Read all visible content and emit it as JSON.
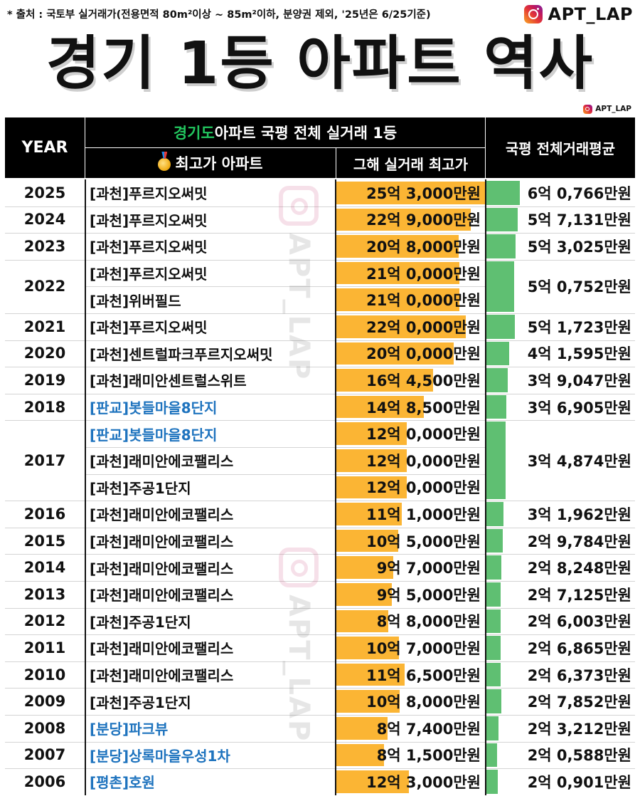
{
  "source_note": "* 출처 : 국토부 실거래가(전용면적 80m²이상 ~ 85m²이하, 분양권 제외, '25년은 6/25기준)",
  "brand": {
    "icon": "instagram-icon",
    "name": "APT_LAP",
    "small_name": "APT_LAP"
  },
  "title": "경기 1등 아파트 역사",
  "watermark_text": "APT_LAP",
  "header": {
    "year": "YEAR",
    "group_highlight": "경기도",
    "group_rest": " 아파트 국평 전체 실거래 1등",
    "apt_col": "최고가 아파트",
    "price_col": "그해 실거래 최고가",
    "avg_col": "국평 전체거래평균"
  },
  "colors": {
    "header_bg": "#000000",
    "highlight": "#22c55e",
    "price_bar": "#fbb534",
    "avg_bar": "#5fbf72",
    "region_blue": "#1e73be"
  },
  "rows": [
    {
      "year": "2025",
      "avg": "6억 0,766만원",
      "avg_value": 60766,
      "apts": [
        {
          "region": "[과천]",
          "name": "푸르지오써밋",
          "blue": false,
          "price": "25억 3,000만원",
          "price_value": 253000
        }
      ]
    },
    {
      "year": "2024",
      "avg": "5억 7,131만원",
      "avg_value": 57131,
      "apts": [
        {
          "region": "[과천]",
          "name": "푸르지오써밋",
          "blue": false,
          "price": "22억 9,000만원",
          "price_value": 229000
        }
      ]
    },
    {
      "year": "2023",
      "avg": "5억 3,025만원",
      "avg_value": 53025,
      "apts": [
        {
          "region": "[과천]",
          "name": "푸르지오써밋",
          "blue": false,
          "price": "20억 8,000만원",
          "price_value": 208000
        }
      ]
    },
    {
      "year": "2022",
      "avg": "5억 0,752만원",
      "avg_value": 50752,
      "apts": [
        {
          "region": "[과천]",
          "name": "푸르지오써밋",
          "blue": false,
          "price": "21억 0,000만원",
          "price_value": 210000
        },
        {
          "region": "[과천]",
          "name": "위버필드",
          "blue": false,
          "price": "21억 0,000만원",
          "price_value": 210000
        }
      ]
    },
    {
      "year": "2021",
      "avg": "5억 1,723만원",
      "avg_value": 51723,
      "apts": [
        {
          "region": "[과천]",
          "name": "푸르지오써밋",
          "blue": false,
          "price": "22억 0,000만원",
          "price_value": 220000
        }
      ]
    },
    {
      "year": "2020",
      "avg": "4억 1,595만원",
      "avg_value": 41595,
      "apts": [
        {
          "region": "[과천]",
          "name": "센트럴파크푸르지오써밋",
          "blue": false,
          "price": "20억 0,000만원",
          "price_value": 200000
        }
      ]
    },
    {
      "year": "2019",
      "avg": "3억 9,047만원",
      "avg_value": 39047,
      "apts": [
        {
          "region": "[과천]",
          "name": "래미안센트럴스위트",
          "blue": false,
          "price": "16억 4,500만원",
          "price_value": 164500
        }
      ]
    },
    {
      "year": "2018",
      "avg": "3억 6,905만원",
      "avg_value": 36905,
      "apts": [
        {
          "region": "[판교]",
          "name": "봇들마을8단지",
          "blue": true,
          "price": "14억 8,500만원",
          "price_value": 148500
        }
      ]
    },
    {
      "year": "2017",
      "avg": "3억 4,874만원",
      "avg_value": 34874,
      "apts": [
        {
          "region": "[판교]",
          "name": "봇들마을8단지",
          "blue": true,
          "price": "12억 0,000만원",
          "price_value": 120000
        },
        {
          "region": "[과천]",
          "name": "래미안에코팰리스",
          "blue": false,
          "price": "12억 0,000만원",
          "price_value": 120000
        },
        {
          "region": "[과천]",
          "name": "주공1단지",
          "blue": false,
          "price": "12억 0,000만원",
          "price_value": 120000
        }
      ]
    },
    {
      "year": "2016",
      "avg": "3억 1,962만원",
      "avg_value": 31962,
      "apts": [
        {
          "region": "[과천]",
          "name": "래미안에코팰리스",
          "blue": false,
          "price": "11억 1,000만원",
          "price_value": 111000
        }
      ]
    },
    {
      "year": "2015",
      "avg": "2억 9,784만원",
      "avg_value": 29784,
      "apts": [
        {
          "region": "[과천]",
          "name": "래미안에코팰리스",
          "blue": false,
          "price": "10억 5,000만원",
          "price_value": 105000
        }
      ]
    },
    {
      "year": "2014",
      "avg": "2억 8,248만원",
      "avg_value": 28248,
      "apts": [
        {
          "region": "[과천]",
          "name": "래미안에코팰리스",
          "blue": false,
          "price": "9억 7,000만원",
          "price_value": 97000
        }
      ]
    },
    {
      "year": "2013",
      "avg": "2억 7,125만원",
      "avg_value": 27125,
      "apts": [
        {
          "region": "[과천]",
          "name": "래미안에코팰리스",
          "blue": false,
          "price": "9억 5,000만원",
          "price_value": 95000
        }
      ]
    },
    {
      "year": "2012",
      "avg": "2억 6,003만원",
      "avg_value": 26003,
      "apts": [
        {
          "region": "[과천]",
          "name": "주공1단지",
          "blue": false,
          "price": "8억 8,000만원",
          "price_value": 88000
        }
      ]
    },
    {
      "year": "2011",
      "avg": "2억 6,865만원",
      "avg_value": 26865,
      "apts": [
        {
          "region": "[과천]",
          "name": "래미안에코팰리스",
          "blue": false,
          "price": "10억 7,000만원",
          "price_value": 107000
        }
      ]
    },
    {
      "year": "2010",
      "avg": "2억 6,373만원",
      "avg_value": 26373,
      "apts": [
        {
          "region": "[과천]",
          "name": "래미안에코팰리스",
          "blue": false,
          "price": "11억 6,500만원",
          "price_value": 116500
        }
      ]
    },
    {
      "year": "2009",
      "avg": "2억 7,852만원",
      "avg_value": 27852,
      "apts": [
        {
          "region": "[과천]",
          "name": "주공1단지",
          "blue": false,
          "price": "10억 8,000만원",
          "price_value": 108000
        }
      ]
    },
    {
      "year": "2008",
      "avg": "2억 3,212만원",
      "avg_value": 23212,
      "apts": [
        {
          "region": "[분당]",
          "name": "파크뷰",
          "blue": true,
          "price": "8억 7,400만원",
          "price_value": 87400
        }
      ]
    },
    {
      "year": "2007",
      "avg": "2억 0,588만원",
      "avg_value": 20588,
      "apts": [
        {
          "region": "[분당]",
          "name": "상록마을우성1차",
          "blue": true,
          "price": "8억 1,500만원",
          "price_value": 81500
        }
      ]
    },
    {
      "year": "2006",
      "avg": "2억 0,901만원",
      "avg_value": 20901,
      "apts": [
        {
          "region": "[평촌]",
          "name": "호원",
          "blue": true,
          "price": "12억 3,000만원",
          "price_value": 123000
        }
      ]
    }
  ]
}
